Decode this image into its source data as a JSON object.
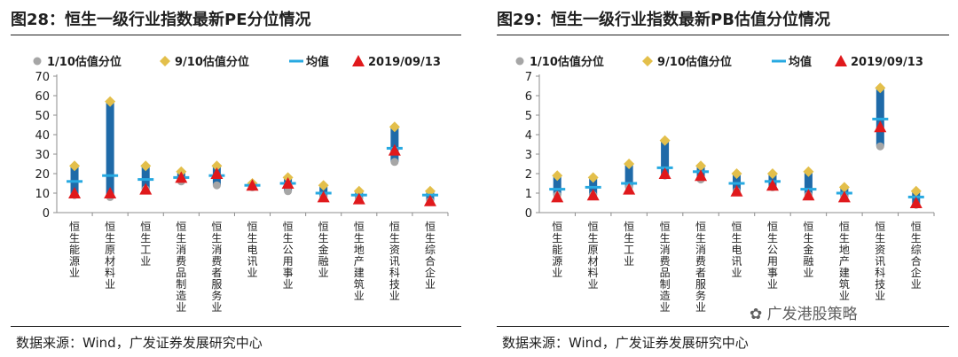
{
  "colors": {
    "bar": "#1f6aa8",
    "p10": "#a6a6a6",
    "p90": "#e3bf4b",
    "mean": "#27a9e1",
    "latest": "#e0191c"
  },
  "panels": [
    {
      "title": "图28：恒生一级行业指数最新PE分位情况",
      "source": "数据来源：Wind，广发证券发展研究中心",
      "chart_data": {
        "type": "range",
        "categories": [
          "恒生能源业",
          "恒生原材料业",
          "恒生工业",
          "恒生消费品制造业",
          "恒生消费者服务业",
          "恒生电讯业",
          "恒生公用事业",
          "恒生金融业",
          "恒生地产建筑业",
          "恒生资讯科技业",
          "恒生综合企业"
        ],
        "legend": [
          "1/10估值分位",
          "9/10估值分位",
          "均值",
          "2019/09/13"
        ],
        "yticks": [
          "0",
          "10",
          "20",
          "30",
          "40",
          "50",
          "60",
          "70"
        ],
        "ylim": [
          0,
          70
        ],
        "series": [
          {
            "name": "1/10估值分位",
            "values": [
              9,
              8,
              12,
              16,
              14,
              13,
              11,
              8,
              7,
              26,
              6
            ]
          },
          {
            "name": "9/10估值分位",
            "values": [
              24,
              57,
              24,
              21,
              24,
              15,
              18,
              14,
              11,
              44,
              11
            ]
          },
          {
            "name": "均值",
            "values": [
              16,
              19,
              17,
              18,
              19,
              14,
              15,
              10,
              9,
              33,
              9
            ]
          },
          {
            "name": "2019/09/13",
            "values": [
              10,
              10,
              12,
              18,
              20,
              14,
              15,
              8,
              7,
              32,
              6
            ]
          }
        ]
      }
    },
    {
      "title": "图29：恒生一级行业指数最新PB估值分位情况",
      "source": "数据来源：Wind，广发证券发展研究中心",
      "chart_data": {
        "type": "range",
        "categories": [
          "恒生能源业",
          "恒生原材料业",
          "恒生工业",
          "恒生消费品制造业",
          "恒生消费者服务业",
          "恒生电讯业",
          "恒生公用事业",
          "恒生金融业",
          "恒生地产建筑业",
          "恒生资讯科技业",
          "恒生综合企业"
        ],
        "legend": [
          "1/10估值分位",
          "9/10估值分位",
          "均值",
          "2019/09/13"
        ],
        "yticks": [
          "0",
          "1",
          "2",
          "3",
          "4",
          "5",
          "6",
          "7"
        ],
        "ylim": [
          0,
          7
        ],
        "series": [
          {
            "name": "1/10估值分位",
            "values": [
              0.9,
              0.9,
              1.3,
              1.9,
              1.7,
              1.1,
              1.3,
              0.9,
              0.8,
              3.4,
              0.4
            ]
          },
          {
            "name": "9/10估值分位",
            "values": [
              1.9,
              1.8,
              2.5,
              3.7,
              2.4,
              2.0,
              2.0,
              2.1,
              1.3,
              6.4,
              1.1
            ]
          },
          {
            "name": "均值",
            "values": [
              1.2,
              1.3,
              1.5,
              2.3,
              2.1,
              1.5,
              1.6,
              1.2,
              1.0,
              4.8,
              0.8
            ]
          },
          {
            "name": "2019/09/13",
            "values": [
              0.8,
              0.9,
              1.2,
              2.0,
              1.9,
              1.1,
              1.4,
              0.9,
              0.8,
              4.4,
              0.5
            ]
          }
        ]
      }
    }
  ],
  "watermark": "广发港股策略"
}
